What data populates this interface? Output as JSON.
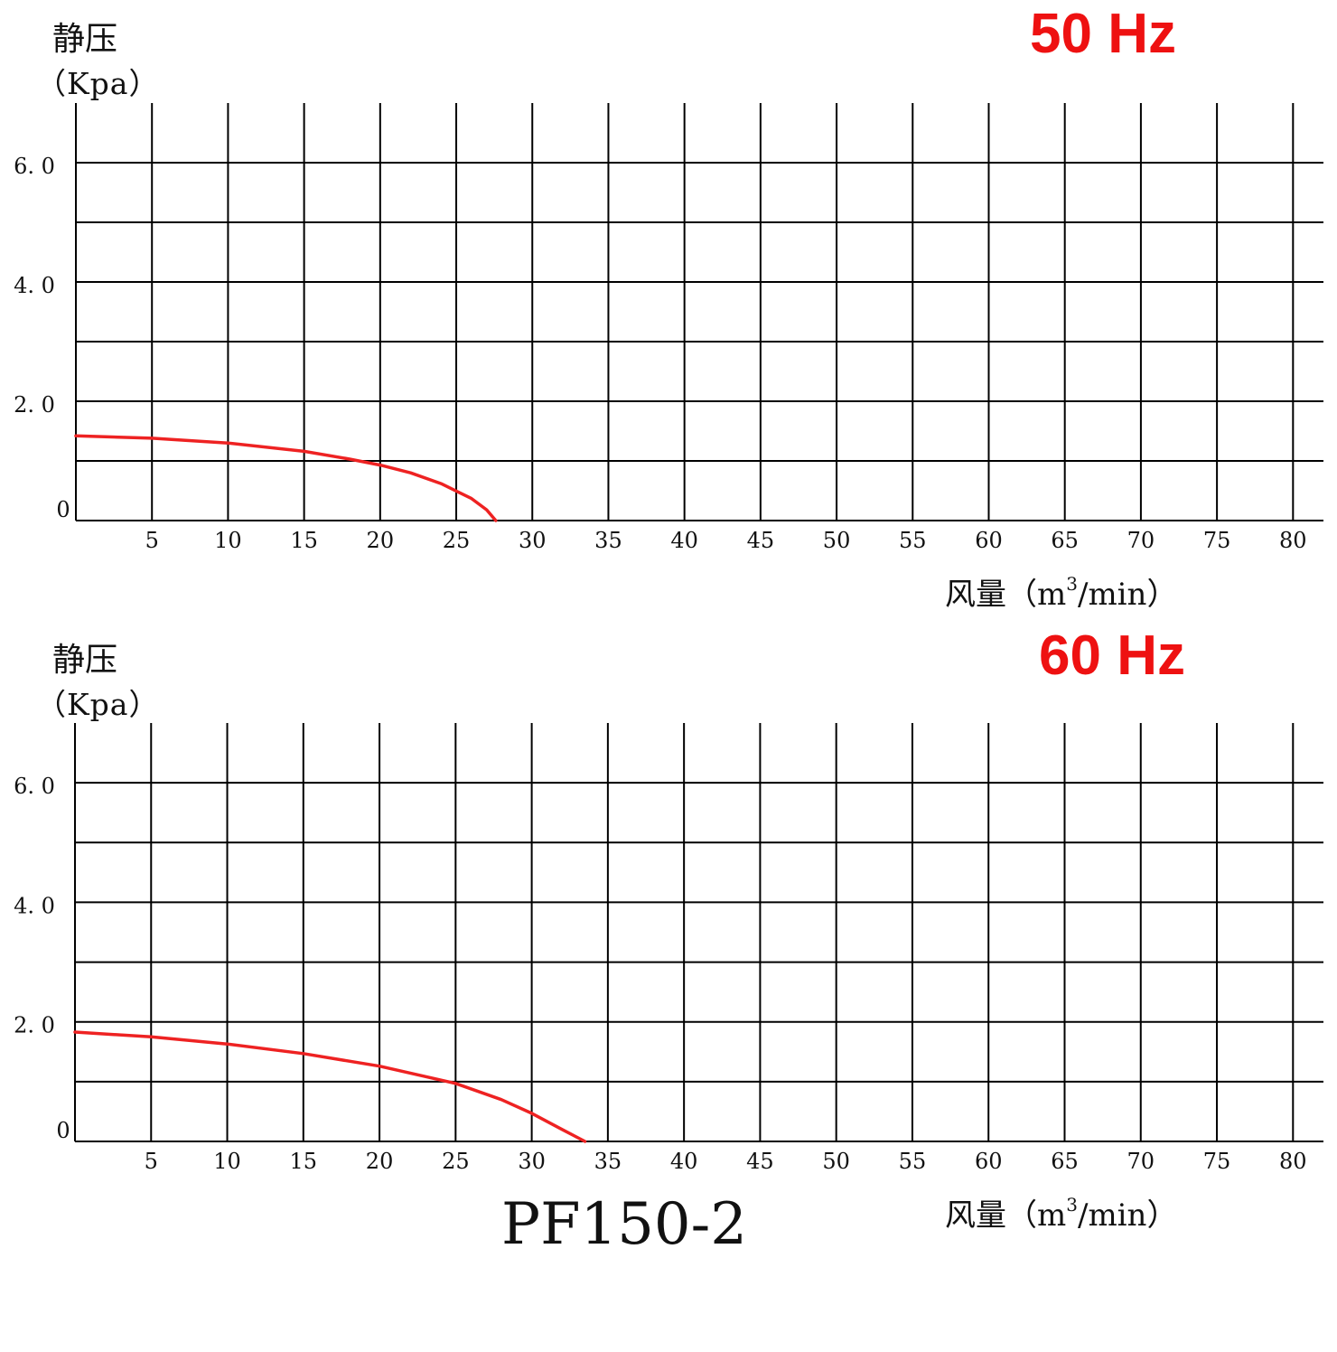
{
  "chart_data": [
    {
      "type": "line",
      "ylabel": "静压",
      "yunit": "（Kpa）",
      "xlabel_text": "风量（m",
      "xlabel_sup": "3",
      "xlabel_end": "/min）",
      "frequency": "50 Hz",
      "xlim": [
        0,
        82
      ],
      "ylim": [
        0,
        7
      ],
      "x_ticks": [
        5,
        10,
        15,
        20,
        25,
        30,
        35,
        40,
        45,
        50,
        55,
        60,
        65,
        70,
        75,
        80
      ],
      "y_ticks": [
        {
          "value": 0,
          "label": "0"
        },
        {
          "value": 2,
          "label": "2. 0"
        },
        {
          "value": 4,
          "label": "4. 0"
        },
        {
          "value": 6,
          "label": "6. 0"
        }
      ],
      "grid": true,
      "series": [
        {
          "color": "#ee2222",
          "x": [
            0,
            5,
            10,
            15,
            18,
            20,
            22,
            24,
            26,
            27,
            27.6
          ],
          "y": [
            1.42,
            1.38,
            1.3,
            1.16,
            1.03,
            0.93,
            0.8,
            0.62,
            0.37,
            0.18,
            0
          ]
        }
      ]
    },
    {
      "type": "line",
      "ylabel": "静压",
      "yunit": "（Kpa）",
      "xlabel_text": "风量（m",
      "xlabel_sup": "3",
      "xlabel_end": "/min）",
      "frequency": "60 Hz",
      "xlim": [
        0,
        82
      ],
      "ylim": [
        0,
        7
      ],
      "x_ticks": [
        5,
        10,
        15,
        20,
        25,
        30,
        35,
        40,
        45,
        50,
        55,
        60,
        65,
        70,
        75,
        80
      ],
      "y_ticks": [
        {
          "value": 0,
          "label": "0"
        },
        {
          "value": 2,
          "label": "2. 0"
        },
        {
          "value": 4,
          "label": "4. 0"
        },
        {
          "value": 6,
          "label": "6. 0"
        }
      ],
      "grid": true,
      "series": [
        {
          "color": "#ee2222",
          "x": [
            0,
            5,
            10,
            15,
            20,
            25,
            28,
            30,
            32,
            33.5
          ],
          "y": [
            1.83,
            1.75,
            1.63,
            1.47,
            1.26,
            0.97,
            0.7,
            0.47,
            0.2,
            0
          ]
        }
      ]
    }
  ],
  "model": "PF150-2"
}
